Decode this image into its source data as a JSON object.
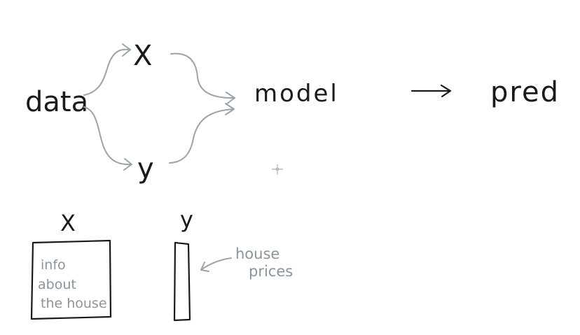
{
  "nodes": {
    "data": "data",
    "x": "X",
    "y": "y",
    "model": "model",
    "pred": "pred"
  },
  "matrices": {
    "x_label": "X",
    "y_label": "y",
    "x_note": [
      "info",
      "about",
      "the house"
    ],
    "y_note": [
      "house",
      "prices"
    ]
  },
  "colors": {
    "ink": "#1a1a1a",
    "grey": "#9aa3aa",
    "grey_text": "#8a949c"
  }
}
